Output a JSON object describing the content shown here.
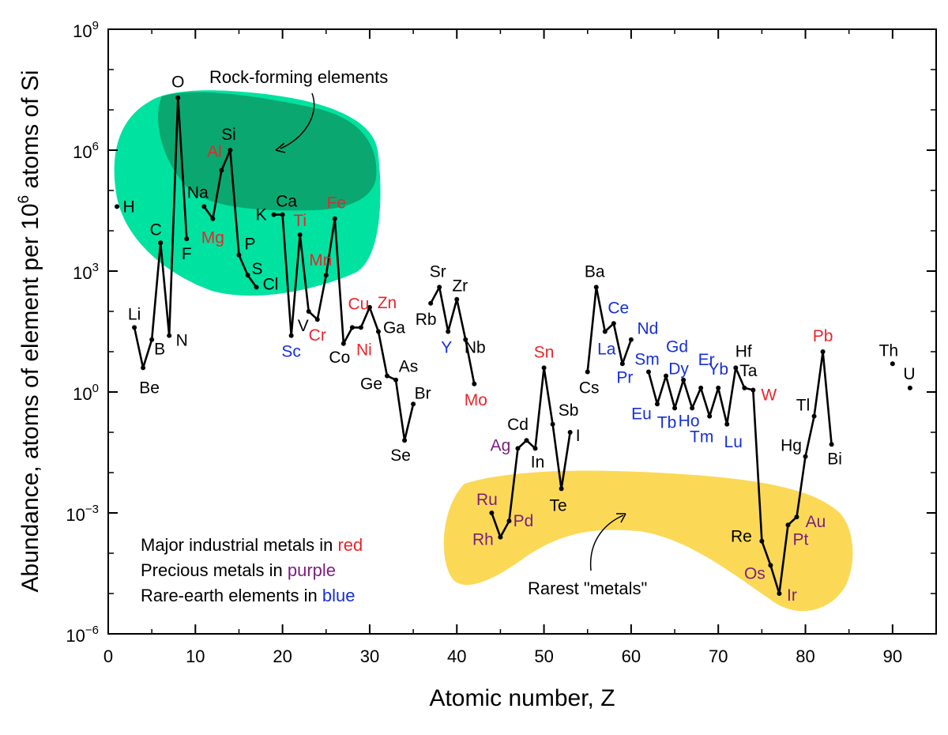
{
  "colors": {
    "black": "#000000",
    "red": "#e8262a",
    "purple": "#7a1f7f",
    "blue": "#1730d8",
    "rock_light": "#00e2a0",
    "rock_dark": "#0aa870",
    "rare_fill": "#fbd957"
  },
  "chart_data": {
    "type": "line",
    "xlabel": "Atomic number, Z",
    "ylabel_prefix": "Abundance, atoms of element per 10",
    "ylabel_exp": "6",
    "ylabel_suffix": " atoms of Si",
    "xlim": [
      0,
      95
    ],
    "ylim_log10": [
      -6,
      9
    ],
    "y_scale": "log",
    "x_ticks": [
      0,
      10,
      20,
      30,
      40,
      50,
      60,
      70,
      80,
      90
    ],
    "x_tick_labels": [
      "0",
      "10",
      "20",
      "30",
      "40",
      "50",
      "60",
      "70",
      "80",
      "90"
    ],
    "y_ticks_log10": [
      -6,
      -3,
      0,
      3,
      6,
      9
    ],
    "y_tick_base": "10",
    "y_tick_exps": [
      "−6",
      "−3",
      "0",
      "3",
      "6",
      "9"
    ],
    "annotations": {
      "rock_forming": "Rock-forming elements",
      "rarest": "Rarest \"metals\""
    },
    "legend_notes": [
      {
        "text": "Major industrial metals in ",
        "color_word": "red",
        "color_key": "red"
      },
      {
        "text": "Precious metals in ",
        "color_word": "purple",
        "color_key": "purple"
      },
      {
        "text": "Rare-earth elements in ",
        "color_word": "blue",
        "color_key": "blue"
      }
    ],
    "series": [
      [
        [
          1,
          4.6
        ]
      ],
      [
        [
          3,
          1.6
        ],
        [
          4,
          0.6
        ],
        [
          5,
          1.3
        ],
        [
          6,
          3.7
        ],
        [
          7,
          1.4
        ],
        [
          8,
          7.3
        ],
        [
          9,
          3.8
        ]
      ],
      [
        [
          11,
          4.6
        ],
        [
          12,
          4.3
        ],
        [
          13,
          5.5
        ],
        [
          14,
          6.0
        ],
        [
          15,
          3.4
        ],
        [
          16,
          2.9
        ],
        [
          17,
          2.6
        ]
      ],
      [
        [
          19,
          4.4
        ],
        [
          20,
          4.4
        ],
        [
          21,
          1.4
        ],
        [
          22,
          3.9
        ],
        [
          23,
          2.0
        ],
        [
          24,
          1.8
        ],
        [
          25,
          2.9
        ],
        [
          26,
          4.3
        ],
        [
          27,
          1.2
        ],
        [
          28,
          1.6
        ],
        [
          29,
          1.6
        ],
        [
          30,
          2.1
        ],
        [
          31,
          1.5
        ],
        [
          32,
          0.4
        ],
        [
          33,
          0.3
        ],
        [
          34,
          -1.2
        ],
        [
          35,
          -0.3
        ]
      ],
      [
        [
          37,
          2.2
        ],
        [
          38,
          2.6
        ],
        [
          39,
          1.5
        ],
        [
          40,
          2.3
        ],
        [
          41,
          1.3
        ],
        [
          42,
          0.2
        ]
      ],
      [
        [
          44,
          -3.0
        ],
        [
          45,
          -3.6
        ],
        [
          46,
          -3.2
        ],
        [
          47,
          -1.4
        ],
        [
          48,
          -1.2
        ],
        [
          49,
          -1.4
        ],
        [
          50,
          0.6
        ],
        [
          51,
          -0.8
        ],
        [
          52,
          -2.4
        ],
        [
          53,
          -1.0
        ]
      ],
      [
        [
          55,
          0.5
        ],
        [
          56,
          2.6
        ],
        [
          57,
          1.5
        ],
        [
          58,
          1.7
        ],
        [
          59,
          0.7
        ],
        [
          60,
          1.3
        ]
      ],
      [
        [
          62,
          0.5
        ],
        [
          63,
          -0.3
        ],
        [
          64,
          0.4
        ],
        [
          65,
          -0.4
        ],
        [
          66,
          0.3
        ],
        [
          67,
          -0.4
        ],
        [
          68,
          0.1
        ],
        [
          69,
          -0.6
        ],
        [
          70,
          0.1
        ],
        [
          71,
          -0.8
        ],
        [
          72,
          0.6
        ],
        [
          73,
          0.1
        ],
        [
          74,
          0.05
        ],
        [
          75,
          -3.7
        ],
        [
          76,
          -4.3
        ],
        [
          77,
          -5.0
        ],
        [
          78,
          -3.3
        ],
        [
          79,
          -3.1
        ],
        [
          80,
          -1.6
        ],
        [
          81,
          -0.6
        ],
        [
          82,
          1.0
        ],
        [
          83,
          -1.3
        ]
      ],
      [
        [
          90,
          0.7
        ]
      ],
      [
        [
          92,
          0.1
        ]
      ]
    ],
    "labels": [
      {
        "t": "H",
        "x": 1,
        "y": 4.6,
        "dx": 15,
        "dy": 0,
        "c": "black"
      },
      {
        "t": "Li",
        "x": 3,
        "y": 1.6,
        "dx": 0,
        "dy": -17,
        "c": "black"
      },
      {
        "t": "Be",
        "x": 4,
        "y": 0.6,
        "dx": 8,
        "dy": 25,
        "c": "black"
      },
      {
        "t": "B",
        "x": 5,
        "y": 1.3,
        "dx": 10,
        "dy": 12,
        "c": "black"
      },
      {
        "t": "C",
        "x": 6,
        "y": 3.7,
        "dx": -6,
        "dy": -17,
        "c": "black"
      },
      {
        "t": "N",
        "x": 7,
        "y": 1.4,
        "dx": 16,
        "dy": 6,
        "c": "black"
      },
      {
        "t": "O",
        "x": 8,
        "y": 7.3,
        "dx": 0,
        "dy": -20,
        "c": "black"
      },
      {
        "t": "F",
        "x": 9,
        "y": 3.8,
        "dx": 0,
        "dy": 19,
        "c": "black"
      },
      {
        "t": "Na",
        "x": 11,
        "y": 4.6,
        "dx": -8,
        "dy": -18,
        "c": "black"
      },
      {
        "t": "Mg",
        "x": 12,
        "y": 4.3,
        "dx": 0,
        "dy": 24,
        "c": "red"
      },
      {
        "t": "Al",
        "x": 13,
        "y": 5.5,
        "dx": -9,
        "dy": -24,
        "c": "red"
      },
      {
        "t": "Si",
        "x": 14,
        "y": 6.0,
        "dx": -2,
        "dy": -20,
        "c": "black"
      },
      {
        "t": "P",
        "x": 15,
        "y": 3.4,
        "dx": 14,
        "dy": -14,
        "c": "black"
      },
      {
        "t": "S",
        "x": 16,
        "y": 2.9,
        "dx": 12,
        "dy": -8,
        "c": "black"
      },
      {
        "t": "Cl",
        "x": 17,
        "y": 2.6,
        "dx": 18,
        "dy": -4,
        "c": "black"
      },
      {
        "t": "K",
        "x": 19,
        "y": 4.4,
        "dx": -16,
        "dy": 0,
        "c": "black"
      },
      {
        "t": "Ca",
        "x": 20,
        "y": 4.4,
        "dx": 5,
        "dy": -17,
        "c": "black"
      },
      {
        "t": "Sc",
        "x": 21,
        "y": 1.4,
        "dx": 0,
        "dy": 20,
        "c": "blue"
      },
      {
        "t": "Ti",
        "x": 22,
        "y": 3.9,
        "dx": 0,
        "dy": -18,
        "c": "red"
      },
      {
        "t": "V",
        "x": 23,
        "y": 2.0,
        "dx": -7,
        "dy": 18,
        "c": "black"
      },
      {
        "t": "Cr",
        "x": 24,
        "y": 1.8,
        "dx": 0,
        "dy": 20,
        "c": "red"
      },
      {
        "t": "Mn",
        "x": 25,
        "y": 2.9,
        "dx": -7,
        "dy": -19,
        "c": "red"
      },
      {
        "t": "Fe",
        "x": 26,
        "y": 4.3,
        "dx": 2,
        "dy": -20,
        "c": "red"
      },
      {
        "t": "Co",
        "x": 27,
        "y": 1.2,
        "dx": -5,
        "dy": 17,
        "c": "black"
      },
      {
        "t": "Ni",
        "x": 28,
        "y": 1.6,
        "dx": 15,
        "dy": 28,
        "c": "red"
      },
      {
        "t": "Cu",
        "x": 29,
        "y": 1.6,
        "dx": -3,
        "dy": -30,
        "c": "red"
      },
      {
        "t": "Zn",
        "x": 30,
        "y": 2.1,
        "dx": 22,
        "dy": -6,
        "c": "red"
      },
      {
        "t": "Ga",
        "x": 31,
        "y": 1.5,
        "dx": 20,
        "dy": -5,
        "c": "black"
      },
      {
        "t": "Ge",
        "x": 32,
        "y": 0.4,
        "dx": -20,
        "dy": 10,
        "c": "black"
      },
      {
        "t": "As",
        "x": 33,
        "y": 0.3,
        "dx": 16,
        "dy": -17,
        "c": "black"
      },
      {
        "t": "Se",
        "x": 34,
        "y": -1.2,
        "dx": -5,
        "dy": 19,
        "c": "black"
      },
      {
        "t": "Br",
        "x": 35,
        "y": -0.3,
        "dx": 12,
        "dy": -14,
        "c": "black"
      },
      {
        "t": "Rb",
        "x": 37,
        "y": 2.2,
        "dx": -6,
        "dy": 20,
        "c": "black"
      },
      {
        "t": "Sr",
        "x": 38,
        "y": 2.6,
        "dx": -2,
        "dy": -20,
        "c": "black"
      },
      {
        "t": "Y",
        "x": 39,
        "y": 1.5,
        "dx": -2,
        "dy": 20,
        "c": "blue"
      },
      {
        "t": "Zr",
        "x": 40,
        "y": 2.3,
        "dx": 4,
        "dy": -17,
        "c": "black"
      },
      {
        "t": "Nb",
        "x": 41,
        "y": 1.3,
        "dx": 12,
        "dy": 10,
        "c": "black"
      },
      {
        "t": "Mo",
        "x": 42,
        "y": 0.2,
        "dx": 2,
        "dy": 20,
        "c": "red"
      },
      {
        "t": "Ru",
        "x": 44,
        "y": -3.0,
        "dx": -6,
        "dy": -17,
        "c": "purple"
      },
      {
        "t": "Rh",
        "x": 45,
        "y": -3.6,
        "dx": -22,
        "dy": 3,
        "c": "purple"
      },
      {
        "t": "Pd",
        "x": 46,
        "y": -3.2,
        "dx": 18,
        "dy": 0,
        "c": "purple"
      },
      {
        "t": "Ag",
        "x": 47,
        "y": -1.4,
        "dx": -22,
        "dy": -4,
        "c": "purple"
      },
      {
        "t": "Cd",
        "x": 48,
        "y": -1.2,
        "dx": -11,
        "dy": -20,
        "c": "black"
      },
      {
        "t": "In",
        "x": 49,
        "y": -1.4,
        "dx": 3,
        "dy": 17,
        "c": "black"
      },
      {
        "t": "Sn",
        "x": 50,
        "y": 0.6,
        "dx": 0,
        "dy": -20,
        "c": "red"
      },
      {
        "t": "Sb",
        "x": 51,
        "y": -0.8,
        "dx": 20,
        "dy": -18,
        "c": "black"
      },
      {
        "t": "Te",
        "x": 52,
        "y": -2.4,
        "dx": -4,
        "dy": 21,
        "c": "black"
      },
      {
        "t": "I",
        "x": 53,
        "y": -1.0,
        "dx": 10,
        "dy": 4,
        "c": "black"
      },
      {
        "t": "Cs",
        "x": 55,
        "y": 0.5,
        "dx": 2,
        "dy": 20,
        "c": "black"
      },
      {
        "t": "Ba",
        "x": 56,
        "y": 2.6,
        "dx": -2,
        "dy": -20,
        "c": "black"
      },
      {
        "t": "La",
        "x": 57,
        "y": 1.5,
        "dx": 2,
        "dy": 22,
        "c": "blue"
      },
      {
        "t": "Ce",
        "x": 58,
        "y": 1.7,
        "dx": 6,
        "dy": -20,
        "c": "blue"
      },
      {
        "t": "Pr",
        "x": 59,
        "y": 0.7,
        "dx": 3,
        "dy": 17,
        "c": "blue"
      },
      {
        "t": "Nd",
        "x": 60,
        "y": 1.3,
        "dx": 21,
        "dy": -14,
        "c": "blue"
      },
      {
        "t": "Sm",
        "x": 62,
        "y": 0.5,
        "dx": -2,
        "dy": -16,
        "c": "blue"
      },
      {
        "t": "Eu",
        "x": 63,
        "y": -0.3,
        "dx": -20,
        "dy": 12,
        "c": "blue"
      },
      {
        "t": "Gd",
        "x": 64,
        "y": 0.4,
        "dx": 14,
        "dy": -37,
        "c": "blue"
      },
      {
        "t": "Tb",
        "x": 65,
        "y": -0.4,
        "dx": -10,
        "dy": 18,
        "c": "blue"
      },
      {
        "t": "Dy",
        "x": 66,
        "y": 0.3,
        "dx": -6,
        "dy": -14,
        "c": "blue"
      },
      {
        "t": "Ho",
        "x": 67,
        "y": -0.4,
        "dx": -4,
        "dy": 16,
        "c": "blue"
      },
      {
        "t": "Er",
        "x": 68,
        "y": 0.1,
        "dx": 7,
        "dy": -36,
        "c": "blue"
      },
      {
        "t": "Tm",
        "x": 69,
        "y": -0.6,
        "dx": -10,
        "dy": 26,
        "c": "blue"
      },
      {
        "t": "Yb",
        "x": 70,
        "y": 0.1,
        "dx": 0,
        "dy": -24,
        "c": "blue"
      },
      {
        "t": "Lu",
        "x": 71,
        "y": -0.8,
        "dx": 8,
        "dy": 22,
        "c": "blue"
      },
      {
        "t": "Hf",
        "x": 72,
        "y": 0.6,
        "dx": 10,
        "dy": -21,
        "c": "black"
      },
      {
        "t": "Ta",
        "x": 73,
        "y": 0.1,
        "dx": 5,
        "dy": -22,
        "c": "black"
      },
      {
        "t": "W",
        "x": 74,
        "y": 0.05,
        "dx": 20,
        "dy": 6,
        "c": "red"
      },
      {
        "t": "Re",
        "x": 75,
        "y": -3.7,
        "dx": -26,
        "dy": -6,
        "c": "black"
      },
      {
        "t": "Os",
        "x": 76,
        "y": -4.3,
        "dx": -20,
        "dy": 10,
        "c": "purple"
      },
      {
        "t": "Ir",
        "x": 77,
        "y": -5.0,
        "dx": 16,
        "dy": 2,
        "c": "purple"
      },
      {
        "t": "Pt",
        "x": 78,
        "y": -3.3,
        "dx": 16,
        "dy": 18,
        "c": "purple"
      },
      {
        "t": "Au",
        "x": 79,
        "y": -3.1,
        "dx": 24,
        "dy": 6,
        "c": "purple"
      },
      {
        "t": "Hg",
        "x": 80,
        "y": -1.6,
        "dx": -18,
        "dy": -14,
        "c": "black"
      },
      {
        "t": "Tl",
        "x": 81,
        "y": -0.6,
        "dx": -14,
        "dy": -14,
        "c": "black"
      },
      {
        "t": "Pb",
        "x": 82,
        "y": 1.0,
        "dx": 0,
        "dy": -20,
        "c": "red"
      },
      {
        "t": "Bi",
        "x": 83,
        "y": -1.3,
        "dx": 4,
        "dy": 18,
        "c": "black"
      },
      {
        "t": "Th",
        "x": 90,
        "y": 0.7,
        "dx": -5,
        "dy": -17,
        "c": "black"
      },
      {
        "t": "U",
        "x": 92,
        "y": 0.1,
        "dx": -1,
        "dy": -18,
        "c": "black"
      }
    ]
  }
}
